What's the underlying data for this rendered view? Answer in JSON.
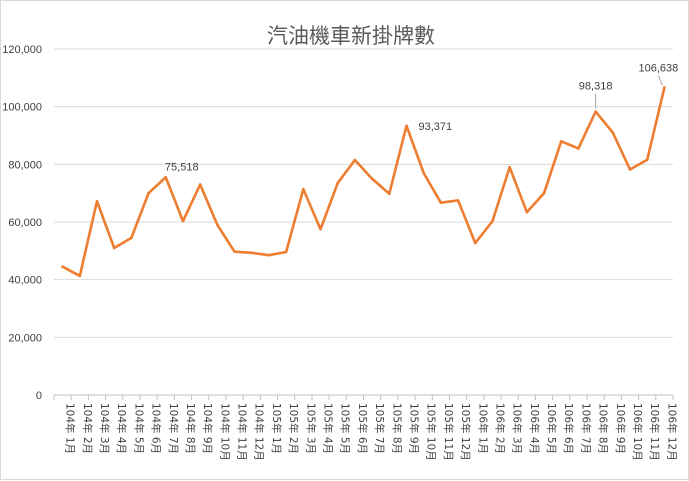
{
  "chart_data": {
    "type": "line",
    "title": "汽油機車新掛牌數",
    "xlabel": "",
    "ylabel": "",
    "ylim": [
      0,
      120000
    ],
    "yticks": [
      0,
      20000,
      40000,
      60000,
      80000,
      100000,
      120000
    ],
    "ytick_labels": [
      "0",
      "20,000",
      "40,000",
      "60,000",
      "80,000",
      "100,000",
      "120,000"
    ],
    "grid": true,
    "legend": "none",
    "line_color": "#ed7d31",
    "categories": [
      "104年 1月",
      "104年 2月",
      "104年 3月",
      "104年 4月",
      "104年 5月",
      "104年 6月",
      "104年 7月",
      "104年 8月",
      "104年 9月",
      "104年 10月",
      "104年 11月",
      "104年 12月",
      "105年 1月",
      "105年 2月",
      "105年 3月",
      "105年 4月",
      "105年 5月",
      "105年 6月",
      "105年 7月",
      "105年 8月",
      "105年 9月",
      "105年 10月",
      "105年 11月",
      "105年 12月",
      "106年 1月",
      "106年 2月",
      "106年 3月",
      "106年 4月",
      "106年 5月",
      "106年 6月",
      "106年 7月",
      "106年 8月",
      "106年 9月",
      "106年 10月",
      "106年 11月",
      "106年 12月"
    ],
    "values": [
      44500,
      41300,
      67200,
      51000,
      54500,
      70000,
      75518,
      60300,
      73000,
      59000,
      49700,
      49300,
      48500,
      49600,
      71400,
      57500,
      73500,
      81500,
      75000,
      69800,
      93371,
      77000,
      66700,
      67500,
      52700,
      60300,
      79000,
      63400,
      70000,
      88000,
      85500,
      98318,
      91000,
      78200,
      81600,
      106638
    ],
    "data_labels": [
      {
        "index": 6,
        "text": "75,518"
      },
      {
        "index": 20,
        "text": "93,371"
      },
      {
        "index": 31,
        "text": "98,318"
      },
      {
        "index": 35,
        "text": "106,638"
      }
    ]
  }
}
